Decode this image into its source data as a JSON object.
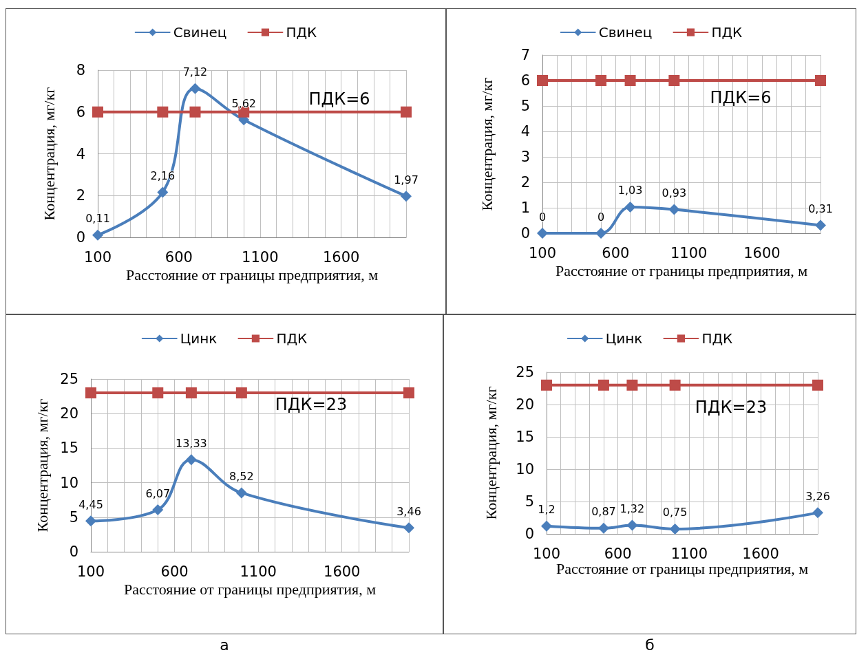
{
  "chart_data": [
    {
      "type": "line",
      "xlabel": "Расстояние от границы предприятия, м",
      "ylabel": "Концентрация, мг/кг",
      "x": [
        100,
        500,
        700,
        1000,
        2000
      ],
      "xlim": [
        100,
        2000
      ],
      "xticks": [
        100,
        {
          "value": 200,
          "label": null
        },
        {
          "value": 300,
          "label": null
        },
        {
          "value": 400,
          "label": null
        },
        {
          "value": 500,
          "label": null
        },
        600,
        {
          "value": 700,
          "label": null
        },
        {
          "value": 800,
          "label": null
        },
        {
          "value": 900,
          "label": null
        },
        {
          "value": 1000,
          "label": null
        },
        1100,
        {
          "value": 1200,
          "label": null
        },
        {
          "value": 1300,
          "label": null
        },
        {
          "value": 1400,
          "label": null
        },
        {
          "value": 1500,
          "label": null
        },
        1600,
        {
          "value": 1700,
          "label": null
        },
        {
          "value": 1800,
          "label": null
        },
        {
          "value": 1900,
          "label": null
        },
        {
          "value": 2000,
          "label": null
        }
      ],
      "ylim": [
        0,
        8
      ],
      "yticks": [
        0,
        2,
        4,
        6,
        8
      ],
      "grid": true,
      "legend": "top",
      "line_style": "solid",
      "series": [
        {
          "name": "Свинец",
          "color": "#4a7ebb",
          "marker": "diamond",
          "values": [
            0.11,
            2.16,
            7.12,
            5.62,
            1.97
          ],
          "value_labels": [
            "0,11",
            "2,16",
            "7,12",
            "5,62",
            "1,97"
          ]
        },
        {
          "name": "ПДК",
          "color": "#be4b48",
          "marker": "square",
          "values": [
            6,
            6,
            6,
            6,
            6
          ]
        }
      ],
      "annotations": [
        "ПДК=6"
      ]
    },
    {
      "type": "line",
      "xlabel": "Расстояние от границы предприятия, м",
      "ylabel": "Концентрация, мг/кг",
      "x": [
        100,
        500,
        700,
        1000,
        2000
      ],
      "xlim": [
        100,
        2000
      ],
      "xticks": [
        100,
        {
          "value": 200,
          "label": null
        },
        {
          "value": 300,
          "label": null
        },
        {
          "value": 400,
          "label": null
        },
        {
          "value": 500,
          "label": null
        },
        600,
        {
          "value": 700,
          "label": null
        },
        {
          "value": 800,
          "label": null
        },
        {
          "value": 900,
          "label": null
        },
        {
          "value": 1000,
          "label": null
        },
        1100,
        {
          "value": 1200,
          "label": null
        },
        {
          "value": 1300,
          "label": null
        },
        {
          "value": 1400,
          "label": null
        },
        {
          "value": 1500,
          "label": null
        },
        1600,
        {
          "value": 1700,
          "label": null
        },
        {
          "value": 1800,
          "label": null
        },
        {
          "value": 1900,
          "label": null
        },
        {
          "value": 2000,
          "label": null
        }
      ],
      "ylim": [
        0,
        7
      ],
      "yticks": [
        0,
        1,
        2,
        3,
        4,
        5,
        6,
        7
      ],
      "grid": true,
      "legend": "top",
      "line_style": "solid",
      "series": [
        {
          "name": "Свинец",
          "color": "#4a7ebb",
          "marker": "diamond",
          "values": [
            0,
            0,
            1.03,
            0.93,
            0.31
          ],
          "value_labels": [
            "0",
            "0",
            "1,03",
            "0,93",
            "0,31"
          ]
        },
        {
          "name": "ПДК",
          "color": "#be4b48",
          "marker": "square",
          "values": [
            6,
            6,
            6,
            6,
            6
          ]
        }
      ],
      "annotations": [
        "ПДК=6"
      ]
    },
    {
      "type": "line",
      "xlabel": "Расстояние от границы предприятия, м",
      "ylabel": "Концентрация, мг/кг",
      "x": [
        100,
        500,
        700,
        1000,
        2000
      ],
      "xlim": [
        100,
        2000
      ],
      "xticks": [
        100,
        {
          "value": 200,
          "label": null
        },
        {
          "value": 300,
          "label": null
        },
        {
          "value": 400,
          "label": null
        },
        {
          "value": 500,
          "label": null
        },
        600,
        {
          "value": 700,
          "label": null
        },
        {
          "value": 800,
          "label": null
        },
        {
          "value": 900,
          "label": null
        },
        {
          "value": 1000,
          "label": null
        },
        1100,
        {
          "value": 1200,
          "label": null
        },
        {
          "value": 1300,
          "label": null
        },
        {
          "value": 1400,
          "label": null
        },
        {
          "value": 1500,
          "label": null
        },
        1600,
        {
          "value": 1700,
          "label": null
        },
        {
          "value": 1800,
          "label": null
        },
        {
          "value": 1900,
          "label": null
        },
        {
          "value": 2000,
          "label": null
        }
      ],
      "ylim": [
        0,
        25
      ],
      "yticks": [
        0,
        5,
        10,
        15,
        20,
        25
      ],
      "grid": true,
      "legend": "top",
      "line_style": "solid",
      "series": [
        {
          "name": "Цинк",
          "color": "#4a7ebb",
          "marker": "diamond",
          "values": [
            4.45,
            6.07,
            13.33,
            8.52,
            3.46
          ],
          "value_labels": [
            "4,45",
            "6,07",
            "13,33",
            "8,52",
            "3,46"
          ]
        },
        {
          "name": "ПДК",
          "color": "#be4b48",
          "marker": "square",
          "values": [
            23,
            23,
            23,
            23,
            23
          ]
        }
      ],
      "annotations": [
        "ПДК=23",
        "а"
      ]
    },
    {
      "type": "line",
      "xlabel": "Расстояние от границы предприятия, м",
      "ylabel": "Концентрация, мг/кг",
      "x": [
        100,
        500,
        700,
        1000,
        2000
      ],
      "xlim": [
        100,
        2000
      ],
      "xticks": [
        100,
        {
          "value": 200,
          "label": null
        },
        {
          "value": 300,
          "label": null
        },
        {
          "value": 400,
          "label": null
        },
        {
          "value": 500,
          "label": null
        },
        600,
        {
          "value": 700,
          "label": null
        },
        {
          "value": 800,
          "label": null
        },
        {
          "value": 900,
          "label": null
        },
        {
          "value": 1000,
          "label": null
        },
        1100,
        {
          "value": 1200,
          "label": null
        },
        {
          "value": 1300,
          "label": null
        },
        {
          "value": 1400,
          "label": null
        },
        {
          "value": 1500,
          "label": null
        },
        1600,
        {
          "value": 1700,
          "label": null
        },
        {
          "value": 1800,
          "label": null
        },
        {
          "value": 1900,
          "label": null
        },
        {
          "value": 2000,
          "label": null
        }
      ],
      "ylim": [
        0,
        25
      ],
      "yticks": [
        0,
        5,
        10,
        15,
        20,
        25
      ],
      "grid": true,
      "legend": "top",
      "line_style": "solid",
      "series": [
        {
          "name": "Цинк",
          "color": "#4a7ebb",
          "marker": "diamond",
          "values": [
            1.2,
            0.87,
            1.32,
            0.75,
            3.26
          ],
          "value_labels": [
            "1,2",
            "0,87",
            "1,32",
            "0,75",
            "3,26"
          ]
        },
        {
          "name": "ПДК",
          "color": "#be4b48",
          "marker": "square",
          "values": [
            23,
            23,
            23,
            23,
            23
          ]
        }
      ],
      "annotations": [
        "ПДК=23",
        "б"
      ]
    }
  ]
}
